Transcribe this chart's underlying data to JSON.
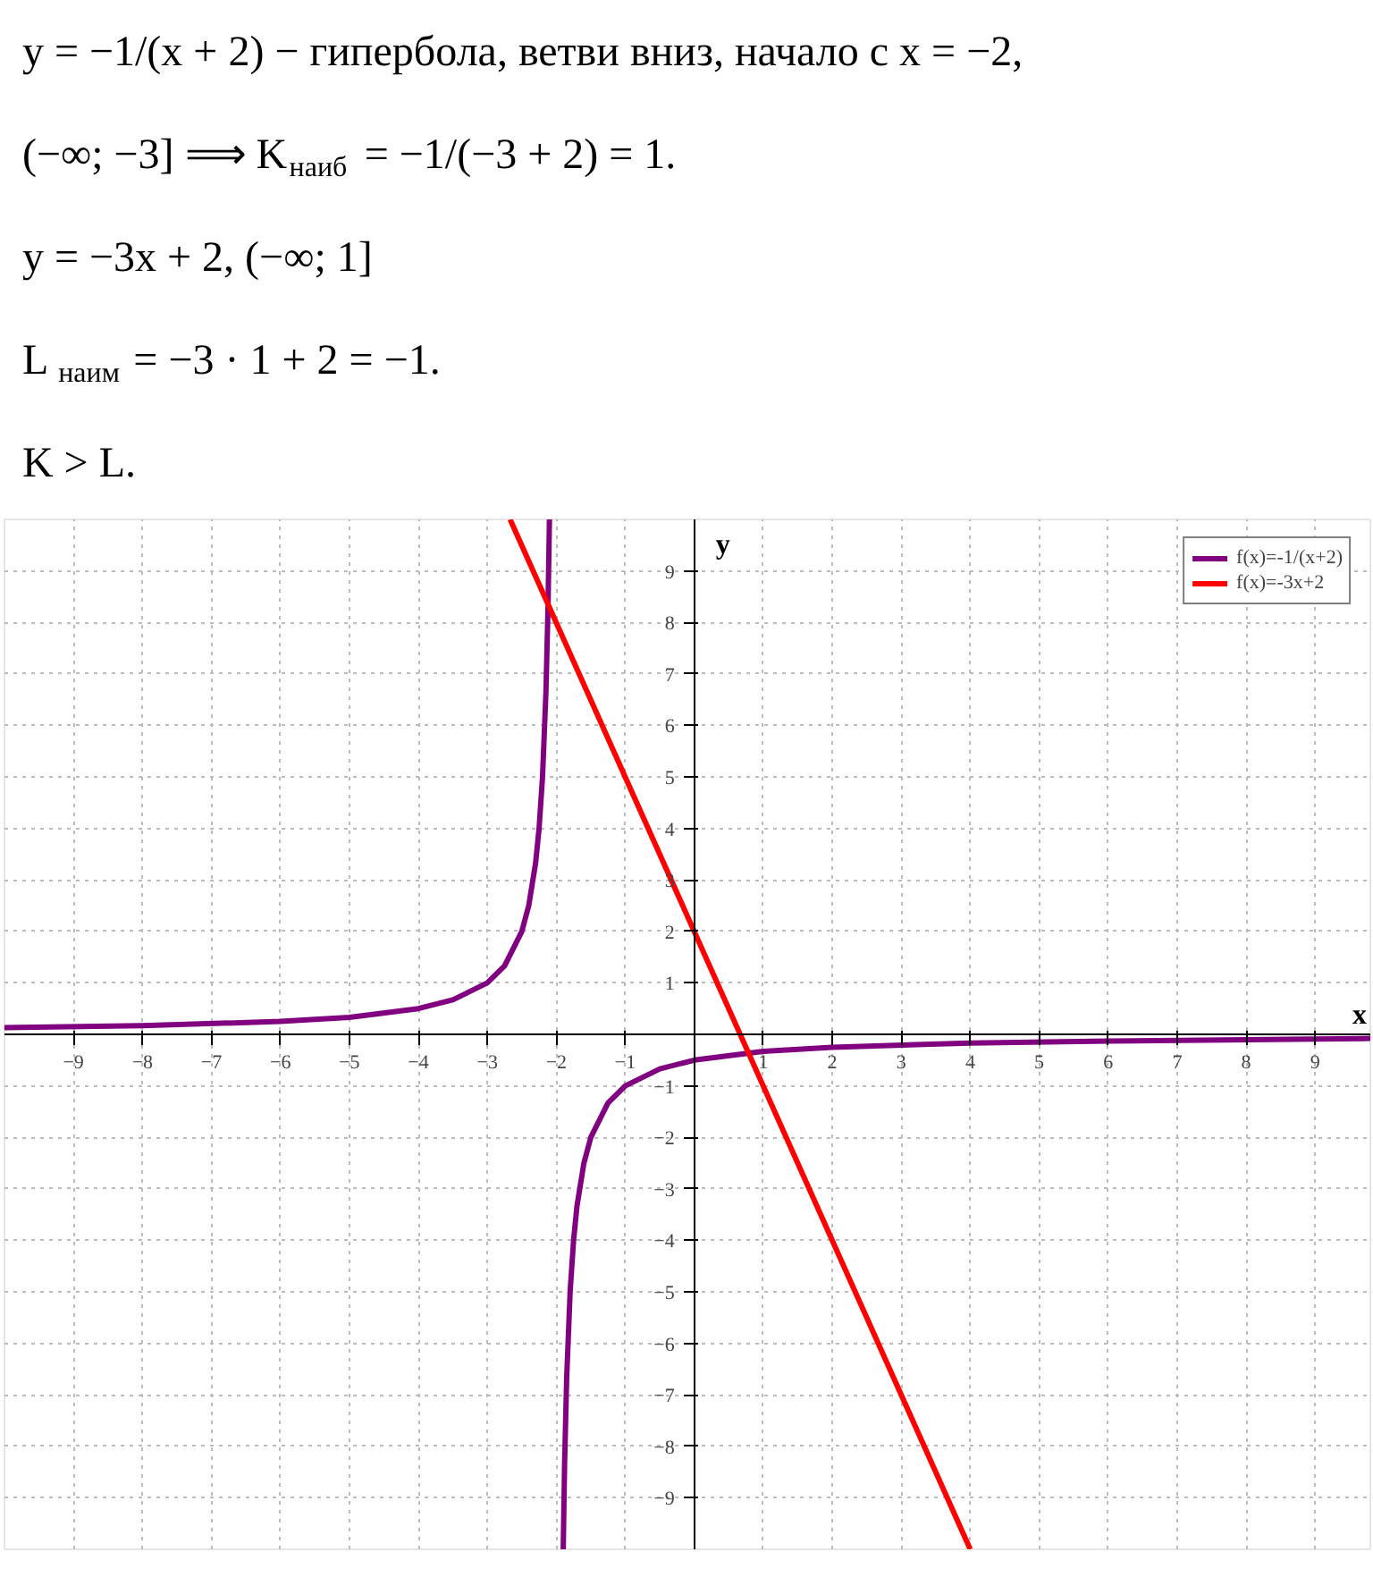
{
  "chart_data": {
    "type": "line",
    "xlabel": "x",
    "ylabel": "y",
    "annotations": [
      "y = −1/(x + 2) − гипербола, ветви вниз, начало с x = −2,",
      "(−∞; −3]  ⟹  K$_{наиб}$ = −1/(−3 + 2) = 1.",
      "y = −3x + 2,      (−∞; 1]",
      "L$_{наим}$ = −3 · 1 + 2 = −1.",
      "K > L."
    ],
    "series": [
      {
        "name": "f(x)=-1/(x+2)",
        "color": "#800080",
        "x": [
          -10,
          -8,
          -6,
          -5,
          -4,
          -3.5,
          -3,
          -2.75,
          -2.5,
          -2.4,
          -2.3,
          -2.25,
          -2.2,
          -2.15,
          -2.12,
          -2.1,
          -2,
          -1.9,
          -1.88,
          -1.85,
          -1.8,
          -1.75,
          -1.7,
          -1.6,
          -1.5,
          -1.25,
          -1,
          -0.5,
          0,
          1,
          2,
          4,
          6,
          9,
          9.8
        ],
        "values": [
          0.13,
          0.17,
          0.25,
          0.33,
          0.5,
          0.67,
          1,
          1.33,
          2,
          2.5,
          3.33,
          4,
          5,
          6.67,
          8.33,
          10,
          null,
          -10,
          -8.33,
          -6.67,
          -5,
          -4,
          -3.33,
          -2.5,
          -2,
          -1.33,
          -1,
          -0.67,
          -0.5,
          -0.33,
          -0.25,
          -0.17,
          -0.13,
          -0.09,
          -0.08
        ]
      },
      {
        "name": "f(x)=-3x+2",
        "color": "#ff0000",
        "x": [
          -2.67,
          4
        ],
        "values": [
          10,
          -10
        ]
      }
    ],
    "xlim": [
      -10,
      9.8
    ],
    "ylim": [
      -10,
      10
    ],
    "xticks": [
      -9,
      -8,
      -7,
      -6,
      -5,
      -4,
      -3,
      -2,
      -1,
      1,
      2,
      3,
      4,
      5,
      6,
      7,
      8,
      9
    ],
    "yticks": [
      -9,
      -8,
      -7,
      -6,
      -5,
      -4,
      -3,
      -2,
      -1,
      1,
      2,
      3,
      4,
      5,
      6,
      7,
      8,
      9
    ],
    "grid": true,
    "legend": "top right",
    "line_style": "solid",
    "marker": "none"
  }
}
